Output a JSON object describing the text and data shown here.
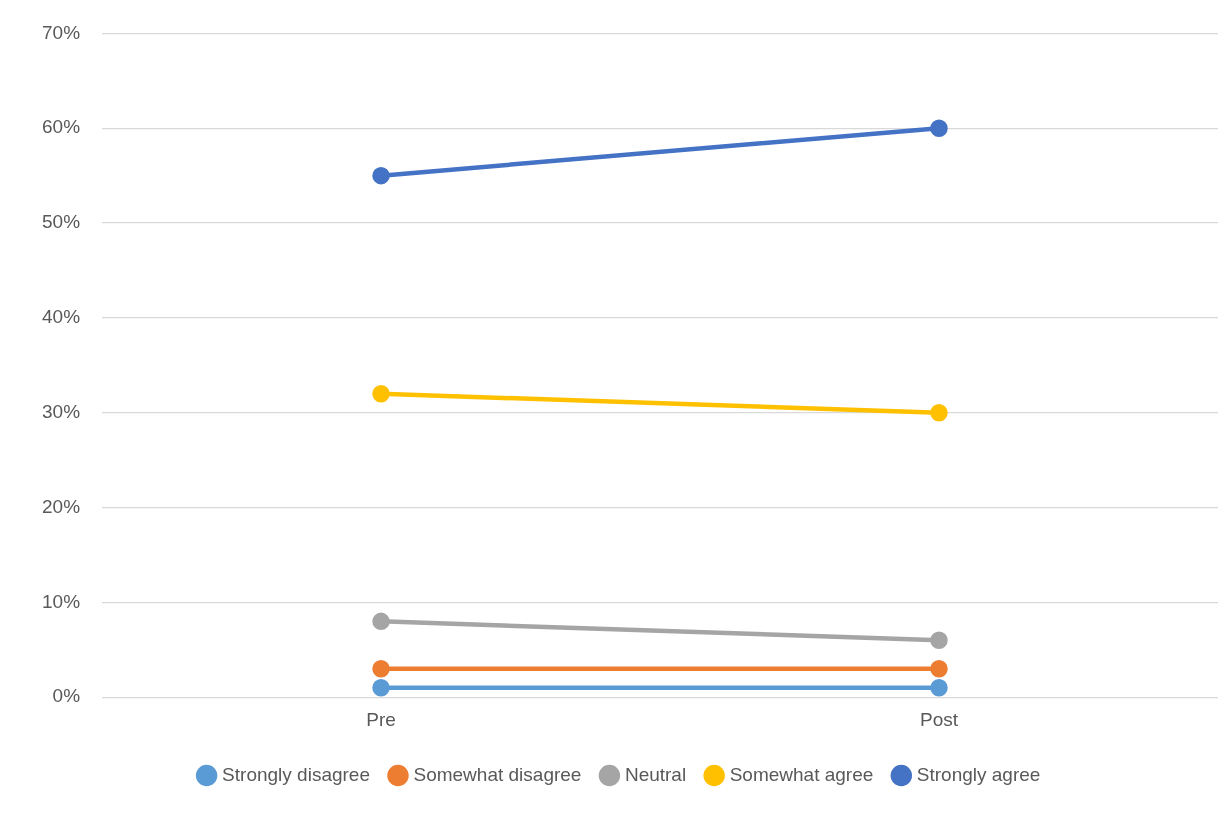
{
  "chart_data": {
    "type": "line",
    "categories": [
      "Pre",
      "Post"
    ],
    "series": [
      {
        "name": "Strongly disagree",
        "color": "#5b9bd5",
        "values": [
          1,
          1
        ]
      },
      {
        "name": "Somewhat disagree",
        "color": "#ed7d31",
        "values": [
          3,
          3
        ]
      },
      {
        "name": "Neutral",
        "color": "#a5a5a5",
        "values": [
          8,
          6
        ]
      },
      {
        "name": "Somewhat agree",
        "color": "#ffc000",
        "values": [
          32,
          30
        ]
      },
      {
        "name": "Strongly agree",
        "color": "#4472c4",
        "values": [
          55,
          60
        ]
      }
    ],
    "ylim": [
      0,
      70
    ],
    "yticks": [
      {
        "value": 0,
        "label": "0%"
      },
      {
        "value": 10,
        "label": "10%"
      },
      {
        "value": 20,
        "label": "20%"
      },
      {
        "value": 30,
        "label": "30%"
      },
      {
        "value": 40,
        "label": "40%"
      },
      {
        "value": 50,
        "label": "50%"
      },
      {
        "value": 60,
        "label": "60%"
      },
      {
        "value": 70,
        "label": "70%"
      }
    ],
    "grid": "y",
    "legend": "bottom",
    "marker": "circle",
    "line_style": "solid"
  }
}
